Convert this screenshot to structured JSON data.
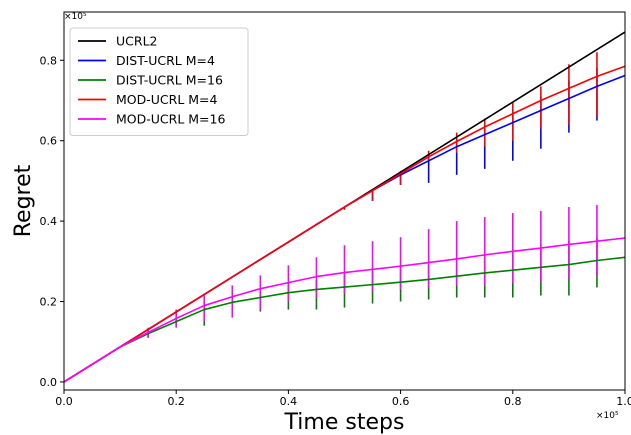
{
  "chart_data": {
    "type": "line",
    "xlabel": "Time steps",
    "ylabel": "Regret",
    "x_offset_text": "×10⁵",
    "y_offset_text": "×10⁵",
    "xlim": [
      0,
      1.0
    ],
    "ylim": [
      -0.02,
      0.92
    ],
    "xticks": [
      0.0,
      0.2,
      0.4,
      0.6,
      0.8,
      1.0
    ],
    "xtick_labels": [
      "0.0",
      "0.2",
      "0.4",
      "0.6",
      "0.8",
      "1.0"
    ],
    "yticks": [
      0.0,
      0.2,
      0.4,
      0.6,
      0.8
    ],
    "ytick_labels": [
      "0.0",
      "0.2",
      "0.4",
      "0.6",
      "0.8"
    ],
    "grid": false,
    "legend_position": "top-left",
    "error_bar_x": [
      0.15,
      0.2,
      0.25,
      0.3,
      0.35,
      0.4,
      0.45,
      0.5,
      0.55,
      0.6,
      0.65,
      0.7,
      0.75,
      0.8,
      0.85,
      0.9,
      0.95
    ],
    "series": [
      {
        "name": "UCRL2",
        "color": "#000000",
        "x": [
          0.0,
          1.0
        ],
        "y": [
          0.0,
          0.87
        ]
      },
      {
        "name": "DIST-UCRL M=4",
        "color": "#0000ff",
        "x": [
          0.0,
          0.1,
          0.2,
          0.3,
          0.4,
          0.5,
          0.55,
          0.6,
          0.65,
          0.7,
          0.75,
          0.8,
          0.85,
          0.9,
          0.95,
          1.0
        ],
        "y": [
          0.0,
          0.087,
          0.174,
          0.261,
          0.348,
          0.435,
          0.476,
          0.515,
          0.55,
          0.585,
          0.615,
          0.645,
          0.675,
          0.705,
          0.735,
          0.762
        ],
        "err_low": [
          0.13,
          0.174,
          0.218,
          0.261,
          0.304,
          0.348,
          0.391,
          0.435,
          0.45,
          0.49,
          0.495,
          0.515,
          0.53,
          0.55,
          0.58,
          0.62,
          0.65
        ],
        "err_high": [
          0.13,
          0.174,
          0.218,
          0.261,
          0.304,
          0.348,
          0.391,
          0.435,
          0.476,
          0.52,
          0.56,
          0.6,
          0.63,
          0.67,
          0.71,
          0.75,
          0.78
        ]
      },
      {
        "name": "DIST-UCRL M=16",
        "color": "#008000",
        "x": [
          0.0,
          0.1,
          0.15,
          0.2,
          0.25,
          0.3,
          0.35,
          0.4,
          0.45,
          0.5,
          0.55,
          0.6,
          0.65,
          0.7,
          0.75,
          0.8,
          0.85,
          0.9,
          0.95,
          1.0
        ],
        "y": [
          0.0,
          0.087,
          0.12,
          0.15,
          0.18,
          0.198,
          0.21,
          0.222,
          0.23,
          0.236,
          0.242,
          0.248,
          0.255,
          0.263,
          0.271,
          0.278,
          0.285,
          0.292,
          0.302,
          0.31
        ],
        "err_low": [
          0.11,
          0.14,
          0.14,
          0.17,
          0.175,
          0.18,
          0.18,
          0.185,
          0.195,
          0.2,
          0.205,
          0.21,
          0.21,
          0.21,
          0.215,
          0.215,
          0.235
        ],
        "err_high": [
          0.13,
          0.16,
          0.2,
          0.22,
          0.23,
          0.245,
          0.255,
          0.27,
          0.285,
          0.29,
          0.3,
          0.31,
          0.32,
          0.33,
          0.34,
          0.35,
          0.36
        ]
      },
      {
        "name": "MOD-UCRL M=4",
        "color": "#ff0000",
        "x": [
          0.0,
          0.1,
          0.2,
          0.3,
          0.4,
          0.5,
          0.55,
          0.6,
          0.65,
          0.7,
          0.75,
          0.8,
          0.85,
          0.9,
          0.95,
          1.0
        ],
        "y": [
          0.0,
          0.087,
          0.174,
          0.261,
          0.348,
          0.435,
          0.476,
          0.518,
          0.56,
          0.598,
          0.634,
          0.667,
          0.7,
          0.73,
          0.76,
          0.785
        ],
        "err_low": [
          0.13,
          0.174,
          0.218,
          0.261,
          0.304,
          0.348,
          0.391,
          0.428,
          0.45,
          0.49,
          0.55,
          0.57,
          0.585,
          0.6,
          0.63,
          0.64,
          0.66
        ],
        "err_high": [
          0.13,
          0.174,
          0.218,
          0.261,
          0.304,
          0.348,
          0.391,
          0.435,
          0.476,
          0.525,
          0.575,
          0.62,
          0.655,
          0.695,
          0.735,
          0.79,
          0.82
        ]
      },
      {
        "name": "MOD-UCRL M=16",
        "color": "#ff00ff",
        "x": [
          0.0,
          0.1,
          0.15,
          0.2,
          0.25,
          0.3,
          0.35,
          0.4,
          0.45,
          0.5,
          0.55,
          0.6,
          0.65,
          0.7,
          0.75,
          0.8,
          0.85,
          0.9,
          0.95,
          1.0
        ],
        "y": [
          0.0,
          0.087,
          0.123,
          0.158,
          0.19,
          0.212,
          0.232,
          0.247,
          0.262,
          0.272,
          0.28,
          0.288,
          0.297,
          0.306,
          0.316,
          0.325,
          0.333,
          0.342,
          0.35,
          0.358
        ],
        "err_low": [
          0.11,
          0.135,
          0.15,
          0.16,
          0.18,
          0.2,
          0.21,
          0.22,
          0.225,
          0.23,
          0.235,
          0.24,
          0.24,
          0.245,
          0.25,
          0.255,
          0.265
        ],
        "err_high": [
          0.135,
          0.18,
          0.215,
          0.24,
          0.265,
          0.29,
          0.31,
          0.34,
          0.35,
          0.36,
          0.38,
          0.4,
          0.41,
          0.42,
          0.425,
          0.435,
          0.44
        ]
      }
    ]
  }
}
